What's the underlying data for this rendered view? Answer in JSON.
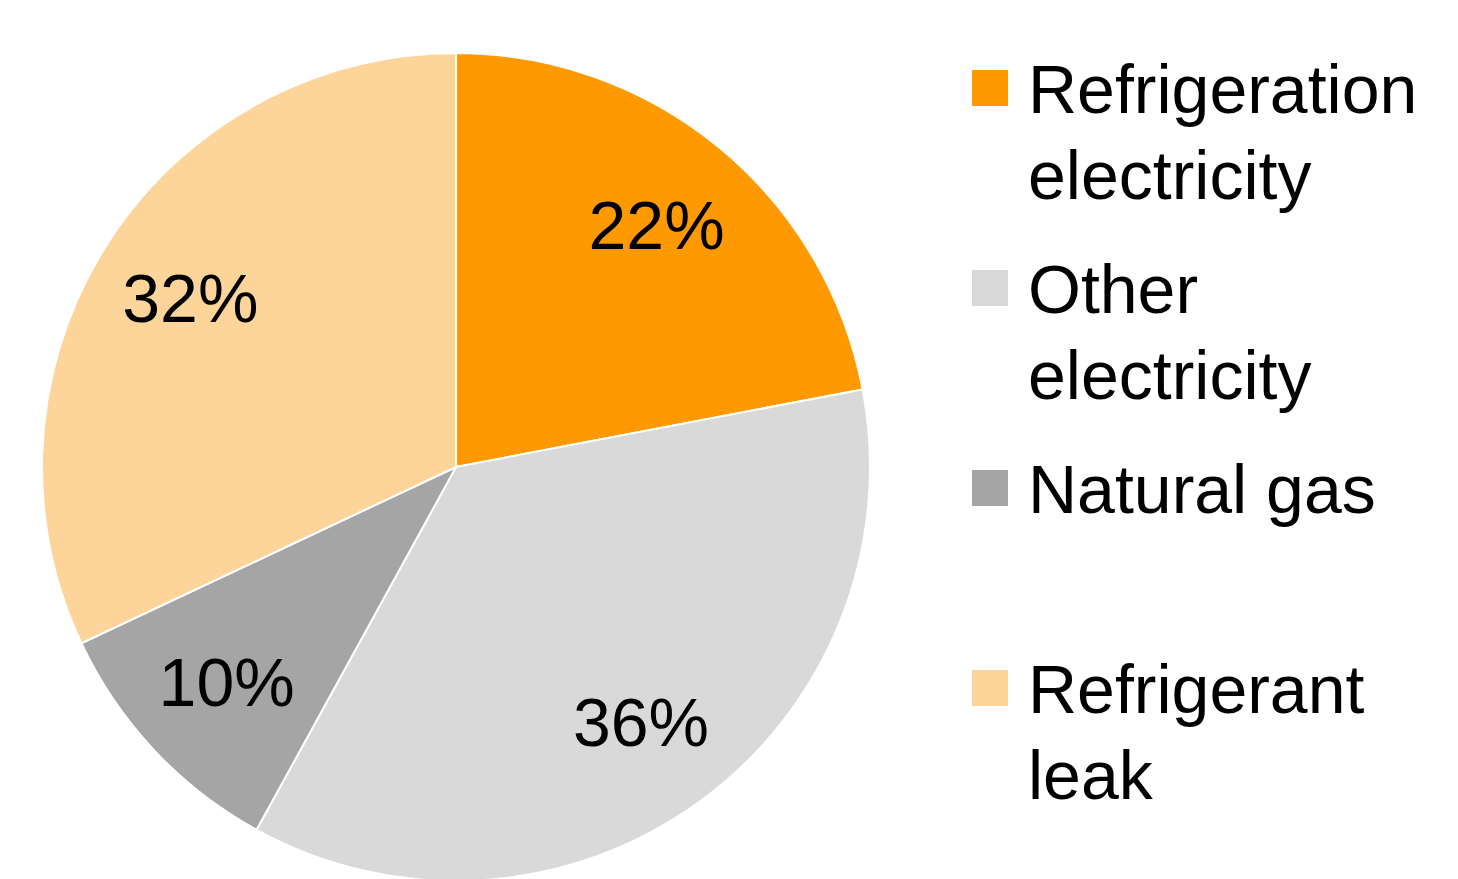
{
  "chart_data": {
    "type": "pie",
    "categories": [
      "Refrigeration electricity",
      "Other electricity",
      "Natural gas",
      "Refrigerant leak"
    ],
    "values": [
      22,
      36,
      10,
      32
    ],
    "colors": [
      "#ff9900",
      "#d9d9d9",
      "#a5a5a5",
      "#fdd59b"
    ],
    "value_labels": [
      "22%",
      "36%",
      "10%",
      "32%"
    ],
    "legend": "right"
  }
}
